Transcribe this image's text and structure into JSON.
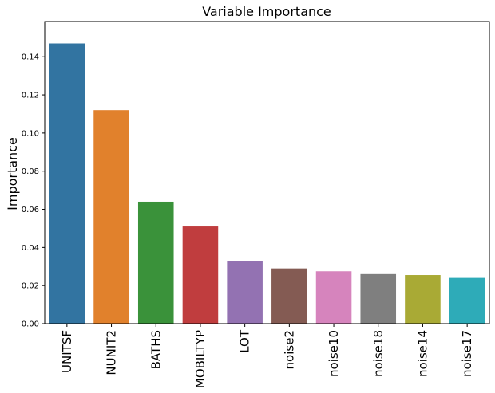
{
  "chart_data": {
    "type": "bar",
    "title": "Variable Importance",
    "xlabel": "",
    "ylabel": "Importance",
    "categories": [
      "UNITSF",
      "NUNIT2",
      "BATHS",
      "MOBILTYP",
      "LOT",
      "noise2",
      "noise10",
      "noise18",
      "noise14",
      "noise17"
    ],
    "values": [
      0.147,
      0.112,
      0.064,
      0.051,
      0.033,
      0.029,
      0.0275,
      0.026,
      0.0255,
      0.024
    ],
    "colors": [
      "#3274a1",
      "#e1812c",
      "#3a923a",
      "#c03d3e",
      "#9372b2",
      "#845b53",
      "#d684bd",
      "#7f7f7f",
      "#a9aa35",
      "#2eabb8"
    ],
    "yticks": [
      "0.00",
      "0.02",
      "0.04",
      "0.06",
      "0.08",
      "0.10",
      "0.12",
      "0.14"
    ],
    "ylim": [
      0,
      0.1585
    ],
    "grid": false
  }
}
